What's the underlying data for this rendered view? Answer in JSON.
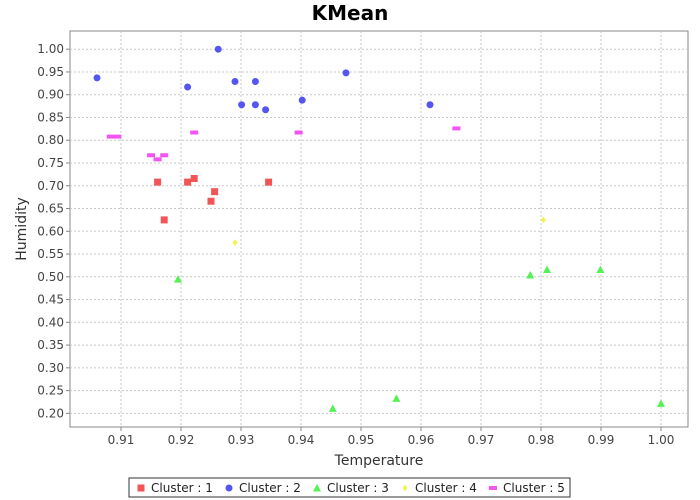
{
  "chart_data": {
    "type": "scatter",
    "title": "KMean",
    "xlabel": "Temperature",
    "ylabel": "Humidity",
    "xlim": [
      0.9015,
      1.0045
    ],
    "ylim": [
      0.17,
      1.04
    ],
    "xticks": [
      "0.91",
      "0.92",
      "0.93",
      "0.94",
      "0.95",
      "0.96",
      "0.97",
      "0.98",
      "0.99",
      "1.00"
    ],
    "xtick_values": [
      0.91,
      0.92,
      0.93,
      0.94,
      0.95,
      0.96,
      0.97,
      0.98,
      0.99,
      1.0
    ],
    "yticks": [
      "0.20",
      "0.25",
      "0.30",
      "0.35",
      "0.40",
      "0.45",
      "0.50",
      "0.55",
      "0.60",
      "0.65",
      "0.70",
      "0.75",
      "0.80",
      "0.85",
      "0.90",
      "0.95",
      "1.00"
    ],
    "ytick_values": [
      0.2,
      0.25,
      0.3,
      0.35,
      0.4,
      0.45,
      0.5,
      0.55,
      0.6,
      0.65,
      0.7,
      0.75,
      0.8,
      0.85,
      0.9,
      0.95,
      1.0
    ],
    "grid": true,
    "legend_position": "bottom",
    "series": [
      {
        "name": "Cluster : 1",
        "marker": "square",
        "color": "#f25555",
        "points": [
          [
            0.9161,
            0.708
          ],
          [
            0.9172,
            0.625
          ],
          [
            0.9211,
            0.708
          ],
          [
            0.9222,
            0.716
          ],
          [
            0.925,
            0.666
          ],
          [
            0.9256,
            0.687
          ],
          [
            0.9346,
            0.708
          ]
        ]
      },
      {
        "name": "Cluster : 2",
        "marker": "circle",
        "color": "#5555f2",
        "points": [
          [
            0.906,
            0.937
          ],
          [
            0.9211,
            0.917
          ],
          [
            0.9262,
            1.0
          ],
          [
            0.929,
            0.929
          ],
          [
            0.9301,
            0.878
          ],
          [
            0.9324,
            0.929
          ],
          [
            0.9324,
            0.878
          ],
          [
            0.9341,
            0.867
          ],
          [
            0.9402,
            0.888
          ],
          [
            0.9475,
            0.948
          ],
          [
            0.9615,
            0.878
          ]
        ]
      },
      {
        "name": "Cluster : 3",
        "marker": "triangle",
        "color": "#55f255",
        "points": [
          [
            0.9195,
            0.495
          ],
          [
            0.9453,
            0.211
          ],
          [
            0.9559,
            0.233
          ],
          [
            0.9782,
            0.504
          ],
          [
            0.981,
            0.516
          ],
          [
            0.9899,
            0.516
          ],
          [
            1.0,
            0.222
          ]
        ]
      },
      {
        "name": "Cluster : 4",
        "marker": "diamond",
        "color": "#f2f255",
        "points": [
          [
            0.929,
            0.575
          ],
          [
            0.9804,
            0.625
          ]
        ]
      },
      {
        "name": "Cluster : 5",
        "marker": "rect",
        "color": "#f255f2",
        "points": [
          [
            0.9083,
            0.808
          ],
          [
            0.9094,
            0.808
          ],
          [
            0.915,
            0.767
          ],
          [
            0.9161,
            0.758
          ],
          [
            0.9172,
            0.767
          ],
          [
            0.9222,
            0.817
          ],
          [
            0.9396,
            0.817
          ],
          [
            0.9659,
            0.826
          ]
        ]
      }
    ]
  }
}
